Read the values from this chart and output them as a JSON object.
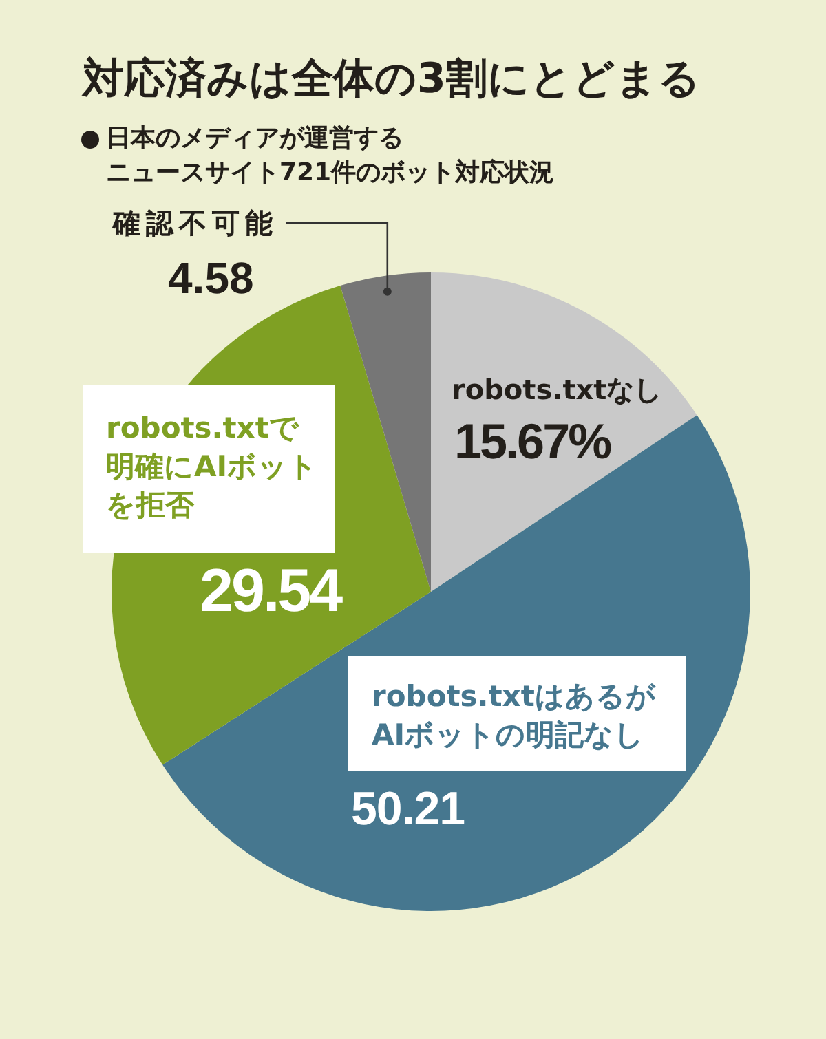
{
  "chart_data": {
    "type": "pie",
    "title": "対応済みは全体の3割にとどまる",
    "subtitle": "日本のメディアが運営するニュースサイト721件のボット対応状況",
    "categories": [
      "robots.txtなし",
      "robots.txtはあるがAIボットの明記なし",
      "robots.txtで明確にAIボットを拒否",
      "確認不可能"
    ],
    "values": [
      15.67,
      50.21,
      29.54,
      4.58
    ],
    "colors": [
      "#c9c9c9",
      "#46778f",
      "#7fa023",
      "#767676"
    ],
    "value_labels": [
      "15.67%",
      "50.21",
      "29.54",
      "4.58"
    ]
  }
}
